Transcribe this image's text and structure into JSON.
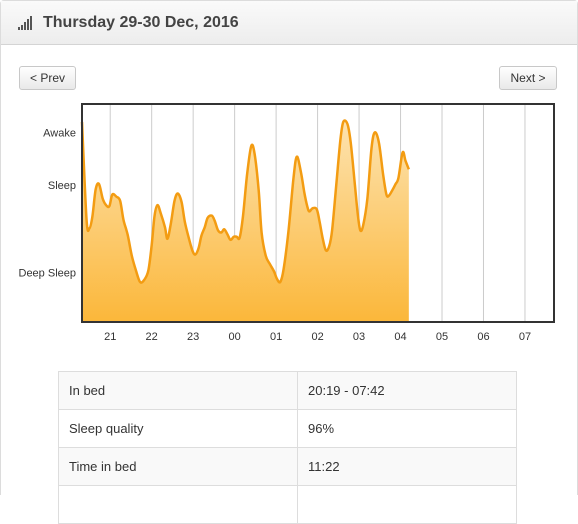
{
  "header": {
    "title": "Thursday 29-30 Dec, 2016",
    "icon": "signal-bars-icon"
  },
  "nav": {
    "prev_label": "< Prev",
    "next_label": "Next >"
  },
  "colors": {
    "line": "#f39c12",
    "fill_top": "#fde3b0",
    "fill_bottom": "#fbb73a",
    "border": "#333333",
    "grid": "#cccccc"
  },
  "chart_data": {
    "type": "area",
    "title": "",
    "xlabel": "",
    "ylabel": "",
    "y_categories": [
      "Deep Sleep",
      "Sleep",
      "Awake"
    ],
    "x_ticks": [
      "21",
      "22",
      "23",
      "00",
      "01",
      "02",
      "03",
      "04",
      "05",
      "06",
      "07"
    ],
    "x_tick_hours": [
      21,
      22,
      23,
      24,
      25,
      26,
      27,
      28,
      29,
      30,
      31
    ],
    "x_range": [
      20.32,
      31.7
    ],
    "y_range": [
      -0.35,
      1.72
    ],
    "grid": true,
    "series": [
      {
        "values": [
          [
            20.32,
            1.55
          ],
          [
            20.43,
            0.62
          ],
          [
            20.5,
            0.54
          ],
          [
            20.57,
            0.65
          ],
          [
            20.65,
            0.91
          ],
          [
            20.73,
            0.96
          ],
          [
            20.82,
            0.82
          ],
          [
            20.9,
            0.76
          ],
          [
            20.98,
            0.75
          ],
          [
            21.05,
            0.86
          ],
          [
            21.15,
            0.84
          ],
          [
            21.24,
            0.8
          ],
          [
            21.32,
            0.62
          ],
          [
            21.42,
            0.48
          ],
          [
            21.52,
            0.28
          ],
          [
            21.62,
            0.14
          ],
          [
            21.72,
            0.03
          ],
          [
            21.82,
            0.05
          ],
          [
            21.92,
            0.14
          ],
          [
            22.0,
            0.38
          ],
          [
            22.07,
            0.66
          ],
          [
            22.14,
            0.76
          ],
          [
            22.22,
            0.68
          ],
          [
            22.32,
            0.55
          ],
          [
            22.38,
            0.44
          ],
          [
            22.46,
            0.58
          ],
          [
            22.55,
            0.8
          ],
          [
            22.63,
            0.87
          ],
          [
            22.72,
            0.79
          ],
          [
            22.8,
            0.6
          ],
          [
            22.9,
            0.44
          ],
          [
            22.98,
            0.33
          ],
          [
            23.05,
            0.29
          ],
          [
            23.13,
            0.35
          ],
          [
            23.2,
            0.47
          ],
          [
            23.28,
            0.55
          ],
          [
            23.35,
            0.64
          ],
          [
            23.45,
            0.66
          ],
          [
            23.52,
            0.61
          ],
          [
            23.6,
            0.52
          ],
          [
            23.68,
            0.5
          ],
          [
            23.75,
            0.53
          ],
          [
            23.83,
            0.48
          ],
          [
            23.9,
            0.43
          ],
          [
            23.98,
            0.46
          ],
          [
            24.05,
            0.46
          ],
          [
            24.12,
            0.45
          ],
          [
            24.2,
            0.65
          ],
          [
            24.3,
            1.05
          ],
          [
            24.4,
            1.32
          ],
          [
            24.48,
            1.25
          ],
          [
            24.58,
            0.9
          ],
          [
            24.65,
            0.5
          ],
          [
            24.75,
            0.28
          ],
          [
            24.85,
            0.2
          ],
          [
            24.95,
            0.13
          ],
          [
            25.02,
            0.06
          ],
          [
            25.1,
            0.03
          ],
          [
            25.18,
            0.15
          ],
          [
            25.3,
            0.52
          ],
          [
            25.42,
            1.02
          ],
          [
            25.5,
            1.22
          ],
          [
            25.6,
            1.07
          ],
          [
            25.68,
            0.88
          ],
          [
            25.75,
            0.75
          ],
          [
            25.8,
            0.7
          ],
          [
            25.88,
            0.73
          ],
          [
            25.98,
            0.72
          ],
          [
            26.05,
            0.6
          ],
          [
            26.12,
            0.45
          ],
          [
            26.2,
            0.33
          ],
          [
            26.28,
            0.37
          ],
          [
            26.35,
            0.52
          ],
          [
            26.45,
            0.95
          ],
          [
            26.55,
            1.38
          ],
          [
            26.62,
            1.55
          ],
          [
            26.72,
            1.53
          ],
          [
            26.8,
            1.35
          ],
          [
            26.9,
            0.95
          ],
          [
            26.97,
            0.67
          ],
          [
            27.03,
            0.52
          ],
          [
            27.1,
            0.57
          ],
          [
            27.2,
            0.82
          ],
          [
            27.3,
            1.3
          ],
          [
            27.38,
            1.45
          ],
          [
            27.48,
            1.35
          ],
          [
            27.58,
            1.05
          ],
          [
            27.66,
            0.86
          ],
          [
            27.72,
            0.85
          ],
          [
            27.8,
            0.9
          ],
          [
            27.88,
            0.96
          ],
          [
            27.95,
            1.02
          ],
          [
            28.05,
            1.26
          ],
          [
            28.12,
            1.18
          ],
          [
            28.2,
            1.1
          ]
        ]
      }
    ]
  },
  "table": {
    "rows": [
      {
        "label": "In bed",
        "value": "20:19 - 07:42"
      },
      {
        "label": "Sleep quality",
        "value": "96%"
      },
      {
        "label": "Time in bed",
        "value": "11:22"
      },
      {
        "label": "",
        "value": ""
      }
    ]
  }
}
